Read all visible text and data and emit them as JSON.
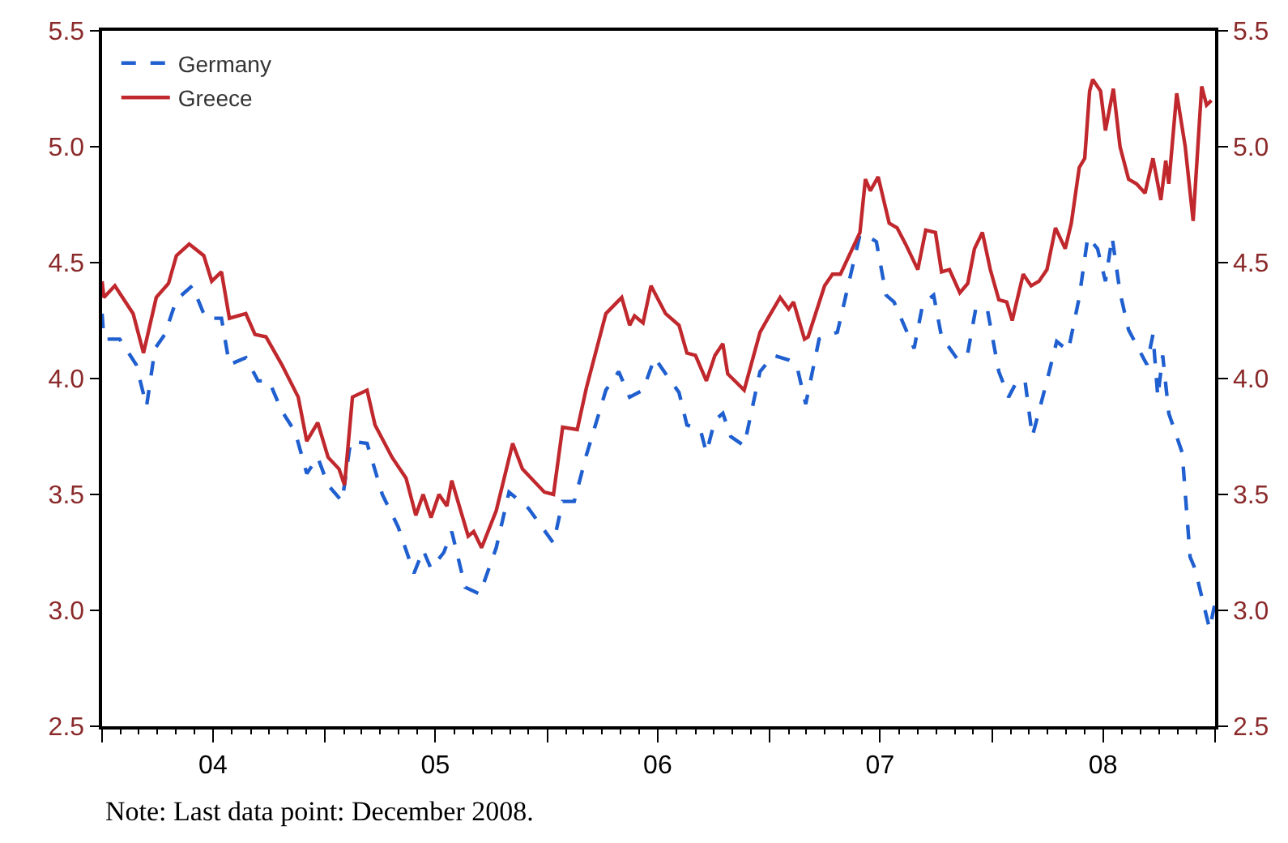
{
  "chart_data": {
    "type": "line",
    "annotations": [
      "Note: Last data point: December 2008."
    ],
    "legend": "top left",
    "xlim": [
      "2004-01-01",
      "2009-01-01"
    ],
    "xticks": [
      {
        "value": "2004-01-01",
        "label": null
      },
      {
        "value": "2004-07-01",
        "label": "04"
      },
      {
        "value": "2005-01-01",
        "label": null
      },
      {
        "value": "2005-07-01",
        "label": "05"
      },
      {
        "value": "2006-01-01",
        "label": null
      },
      {
        "value": "2006-07-01",
        "label": "06"
      },
      {
        "value": "2007-01-01",
        "label": null
      },
      {
        "value": "2007-07-01",
        "label": "07"
      },
      {
        "value": "2008-01-01",
        "label": null
      },
      {
        "value": "2008-07-01",
        "label": "08"
      },
      {
        "value": "2009-01-01",
        "label": null
      }
    ],
    "ylim": [
      2.5,
      5.5
    ],
    "yticks": [
      2.5,
      {
        "value": 3,
        "label": "3.0"
      },
      3.5,
      {
        "value": 4,
        "label": "4.0"
      },
      4.5,
      {
        "value": 5,
        "label": "5.0"
      },
      5.5
    ],
    "y2lim": [
      2.5,
      5.5
    ],
    "y2ticks": [
      2.5,
      {
        "value": 3,
        "label": "3.0"
      },
      3.5,
      {
        "value": 4,
        "label": "4.0"
      },
      4.5,
      {
        "value": 5,
        "label": "5.0"
      },
      5.5
    ],
    "series": [
      {
        "name": "Germany",
        "color": "#1f5fcf",
        "line_style": "dashed",
        "x": [
          "2004-01-01",
          "2004-01-04",
          "2004-01-30",
          "2004-02-26",
          "2004-03-14",
          "2004-03-28",
          "2004-04-13",
          "2004-05-02",
          "2004-05-28",
          "2004-06-19",
          "2004-07-15",
          "2004-07-28",
          "2004-08-24",
          "2004-09-13",
          "2004-10-01",
          "2004-10-22",
          "2004-11-13",
          "2004-12-02",
          "2004-12-20",
          "2005-01-06",
          "2005-01-29",
          "2005-02-12",
          "2005-03-11",
          "2005-04-05",
          "2005-05-01",
          "2005-05-27",
          "2005-06-11",
          "2005-06-24",
          "2005-07-15",
          "2005-07-28",
          "2005-08-19",
          "2005-09-12",
          "2005-10-09",
          "2005-10-30",
          "2005-12-01",
          "2006-01-11",
          "2006-01-26",
          "2006-02-14",
          "2006-03-06",
          "2006-04-07",
          "2006-04-28",
          "2006-05-16",
          "2006-06-07",
          "2006-06-26",
          "2006-07-17",
          "2006-08-05",
          "2006-08-18",
          "2006-09-09",
          "2006-09-19",
          "2006-10-03",
          "2006-10-16",
          "2006-10-29",
          "2006-11-20",
          "2006-12-16",
          "2007-01-07",
          "2007-02-01",
          "2007-02-14",
          "2007-03-01",
          "2007-03-23",
          "2007-04-22",
          "2007-05-29",
          "2007-06-07",
          "2007-06-25",
          "2007-07-11",
          "2007-07-24",
          "2007-08-26",
          "2007-09-09",
          "2007-09-27",
          "2007-10-10",
          "2007-11-06",
          "2007-11-22",
          "2007-12-05",
          "2007-12-24",
          "2008-01-12",
          "2008-01-28",
          "2008-02-11",
          "2008-02-24",
          "2008-03-07",
          "2008-03-31",
          "2008-04-16",
          "2008-05-05",
          "2008-05-23",
          "2008-06-06",
          "2008-06-22",
          "2008-07-05",
          "2008-07-16",
          "2008-07-29",
          "2008-08-12",
          "2008-09-11",
          "2008-09-21",
          "2008-09-29",
          "2008-10-07",
          "2008-10-17",
          "2008-11-08",
          "2008-11-21",
          "2008-11-29",
          "2008-12-10",
          "2008-12-23",
          "2008-12-31"
        ],
        "values": [
          4.28,
          4.17,
          4.17,
          4.06,
          3.88,
          4.13,
          4.19,
          4.34,
          4.4,
          4.26,
          4.26,
          4.06,
          4.09,
          3.99,
          3.99,
          3.86,
          3.77,
          3.59,
          3.66,
          3.54,
          3.47,
          3.73,
          3.72,
          3.5,
          3.36,
          3.16,
          3.26,
          3.18,
          3.25,
          3.34,
          3.1,
          3.07,
          3.27,
          3.51,
          3.44,
          3.29,
          3.47,
          3.47,
          3.67,
          3.95,
          4.03,
          3.92,
          3.95,
          4.09,
          4.01,
          3.94,
          3.8,
          3.78,
          3.68,
          3.82,
          3.85,
          3.75,
          3.71,
          4.03,
          4.1,
          4.08,
          4.06,
          3.89,
          4.17,
          4.2,
          4.62,
          4.62,
          4.59,
          4.36,
          4.33,
          4.13,
          4.32,
          4.36,
          4.18,
          4.08,
          4.11,
          4.3,
          4.3,
          4.03,
          3.92,
          3.99,
          3.99,
          3.75,
          3.99,
          4.16,
          4.12,
          4.35,
          4.61,
          4.56,
          4.42,
          4.61,
          4.37,
          4.21,
          4.06,
          4.19,
          3.92,
          4.1,
          3.85,
          3.68,
          3.23,
          3.18,
          3.06,
          2.92,
          3.02
        ]
      },
      {
        "name": "Greece",
        "color": "#c0282d",
        "line_style": "solid",
        "x": [
          "2004-01-01",
          "2004-01-04",
          "2004-01-22",
          "2004-02-21",
          "2004-03-09",
          "2004-03-30",
          "2004-04-19",
          "2004-05-02",
          "2004-05-23",
          "2004-06-16",
          "2004-06-29",
          "2004-07-15",
          "2004-07-28",
          "2004-08-24",
          "2004-09-08",
          "2004-09-26",
          "2004-10-22",
          "2004-11-18",
          "2004-12-02",
          "2004-12-20",
          "2005-01-06",
          "2005-01-24",
          "2005-02-02",
          "2005-02-15",
          "2005-03-11",
          "2005-03-24",
          "2005-04-21",
          "2005-05-14",
          "2005-05-30",
          "2005-06-11",
          "2005-06-24",
          "2005-07-07",
          "2005-07-20",
          "2005-07-28",
          "2005-08-24",
          "2005-09-02",
          "2005-09-15",
          "2005-10-09",
          "2005-11-05",
          "2005-11-21",
          "2005-12-27",
          "2006-01-11",
          "2006-01-26",
          "2006-02-19",
          "2006-03-06",
          "2006-04-07",
          "2006-05-03",
          "2006-05-16",
          "2006-05-24",
          "2006-06-07",
          "2006-06-20",
          "2006-07-14",
          "2006-08-05",
          "2006-08-18",
          "2006-09-01",
          "2006-09-19",
          "2006-10-03",
          "2006-10-16",
          "2006-10-24",
          "2006-11-20",
          "2006-12-16",
          "2006-12-29",
          "2007-01-18",
          "2007-02-01",
          "2007-02-09",
          "2007-02-27",
          "2007-03-05",
          "2007-04-01",
          "2007-04-14",
          "2007-04-27",
          "2007-05-29",
          "2007-06-07",
          "2007-06-15",
          "2007-06-28",
          "2007-07-16",
          "2007-07-29",
          "2007-08-12",
          "2007-09-01",
          "2007-09-14",
          "2007-09-30",
          "2007-10-10",
          "2007-10-23",
          "2007-11-09",
          "2007-11-22",
          "2007-12-03",
          "2007-12-16",
          "2007-12-29",
          "2008-01-12",
          "2008-01-25",
          "2008-02-03",
          "2008-02-21",
          "2008-03-05",
          "2008-03-18",
          "2008-03-31",
          "2008-04-14",
          "2008-04-30",
          "2008-05-10",
          "2008-05-23",
          "2008-06-01",
          "2008-06-09",
          "2008-06-14",
          "2008-06-27",
          "2008-07-05",
          "2008-07-18",
          "2008-07-29",
          "2008-08-12",
          "2008-08-25",
          "2008-09-08",
          "2008-09-21",
          "2008-10-04",
          "2008-10-12",
          "2008-10-17",
          "2008-10-30",
          "2008-11-13",
          "2008-11-26",
          "2008-12-10",
          "2008-12-18",
          "2008-12-26"
        ],
        "values": [
          4.42,
          4.35,
          4.4,
          4.28,
          4.11,
          4.35,
          4.41,
          4.53,
          4.58,
          4.53,
          4.42,
          4.46,
          4.26,
          4.28,
          4.19,
          4.18,
          4.06,
          3.92,
          3.73,
          3.81,
          3.66,
          3.61,
          3.54,
          3.92,
          3.95,
          3.8,
          3.66,
          3.57,
          3.41,
          3.5,
          3.4,
          3.5,
          3.45,
          3.56,
          3.32,
          3.34,
          3.27,
          3.43,
          3.72,
          3.61,
          3.51,
          3.5,
          3.79,
          3.78,
          3.96,
          4.28,
          4.35,
          4.23,
          4.27,
          4.24,
          4.4,
          4.28,
          4.23,
          4.11,
          4.1,
          3.99,
          4.1,
          4.15,
          4.02,
          3.95,
          4.2,
          4.26,
          4.35,
          4.3,
          4.33,
          4.17,
          4.18,
          4.4,
          4.45,
          4.45,
          4.63,
          4.86,
          4.81,
          4.87,
          4.67,
          4.65,
          4.58,
          4.47,
          4.64,
          4.63,
          4.46,
          4.47,
          4.37,
          4.41,
          4.56,
          4.63,
          4.47,
          4.34,
          4.33,
          4.25,
          4.45,
          4.4,
          4.42,
          4.47,
          4.65,
          4.56,
          4.67,
          4.91,
          4.95,
          5.24,
          5.29,
          5.24,
          5.07,
          5.25,
          5.0,
          4.86,
          4.84,
          4.8,
          4.95,
          4.77,
          4.94,
          4.84,
          5.23,
          5.0,
          4.68,
          5.26,
          5.18,
          5.2
        ]
      }
    ]
  }
}
